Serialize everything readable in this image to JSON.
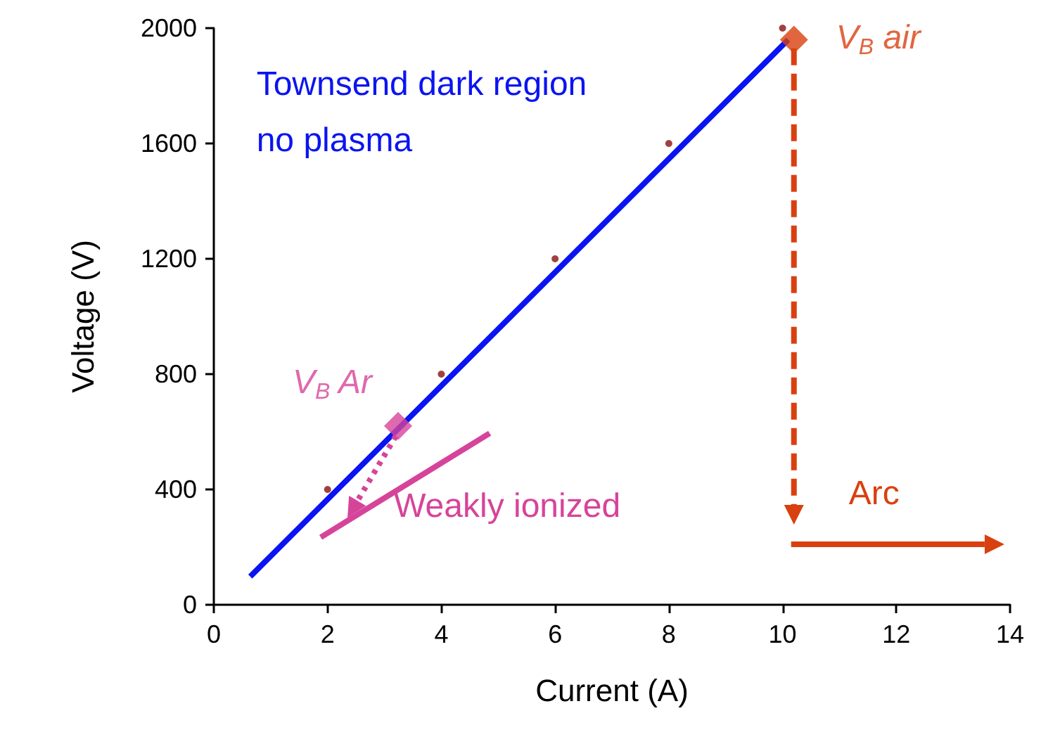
{
  "chart_data": {
    "type": "scatter",
    "xlabel": "Current (A)",
    "ylabel": "Voltage (V)",
    "xlim": [
      0,
      14
    ],
    "xticks": [
      0,
      2,
      4,
      6,
      8,
      10,
      12,
      14
    ],
    "ylim": [
      0,
      2000
    ],
    "yticks": [
      0,
      400,
      800,
      1200,
      1600,
      2000
    ],
    "annotations": [
      "Arc"
    ],
    "series": [
      {
        "color": "#8b1010",
        "marker": "circle",
        "x": [
          2,
          4,
          6,
          8,
          10
        ],
        "values": [
          400,
          800,
          1200,
          1600,
          2000
        ]
      },
      {
        "type": "line",
        "name": "Townsend dark region\nno plasma",
        "color": "#0a14f0",
        "marker": "none",
        "x": [
          0.64,
          10.1
        ],
        "values": [
          98,
          1960
        ]
      },
      {
        "type": "line",
        "name": "Weakly ionized",
        "color": "#d6449a",
        "marker": "none",
        "x": [
          1.88,
          4.85
        ],
        "values": [
          234,
          595
        ]
      },
      {
        "name": "V$_{B}$ Ar",
        "color": "#d6449a",
        "marker": "diamond",
        "x": [
          3.24
        ],
        "values": [
          620
        ]
      },
      {
        "name": "V$_{B}$ air",
        "color": "#d9400f",
        "marker": "diamond",
        "x": [
          10.2
        ],
        "values": [
          1960
        ]
      }
    ]
  }
}
